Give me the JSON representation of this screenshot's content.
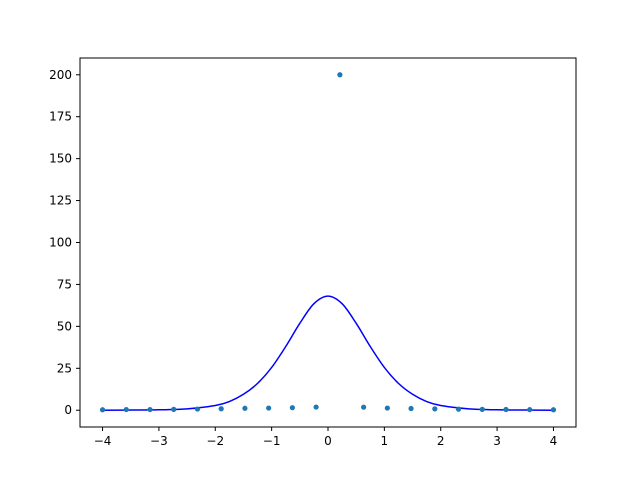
{
  "chart_data": {
    "type": "scatter",
    "title": "",
    "xlabel": "",
    "ylabel": "",
    "xlim": [
      -4.4,
      4.4
    ],
    "ylim": [
      -10,
      210
    ],
    "x_ticks": [
      -4,
      -3,
      -2,
      -1,
      0,
      1,
      2,
      3,
      4
    ],
    "x_tick_labels": [
      "−4",
      "−3",
      "−2",
      "−1",
      "0",
      "1",
      "2",
      "3",
      "4"
    ],
    "y_ticks": [
      0,
      25,
      50,
      75,
      100,
      125,
      150,
      175,
      200
    ],
    "y_tick_labels": [
      "0",
      "25",
      "50",
      "75",
      "100",
      "125",
      "150",
      "175",
      "200"
    ],
    "grid": false,
    "legend": false,
    "series": [
      {
        "kind": "scatter",
        "color": "#1f77b4",
        "x": [
          -4.0,
          -3.579,
          -3.158,
          -2.737,
          -2.316,
          -1.895,
          -1.474,
          -1.053,
          -0.632,
          -0.211,
          0.211,
          0.632,
          1.053,
          1.474,
          1.895,
          2.316,
          2.737,
          3.158,
          3.579,
          4.0
        ],
        "y": [
          0.27,
          0.39,
          0.4,
          0.52,
          0.68,
          0.89,
          1.16,
          1.28,
          1.5,
          1.9,
          200,
          1.8,
          1.28,
          1.02,
          0.82,
          0.65,
          0.51,
          0.42,
          0.34,
          0.28
        ]
      },
      {
        "kind": "line",
        "color": "#0000ff",
        "x": [
          -4.0,
          -3.5,
          -3.0,
          -2.5,
          -2.0,
          -1.75,
          -1.5,
          -1.25,
          -1.0,
          -0.75,
          -0.5,
          -0.25,
          0.0,
          0.25,
          0.5,
          0.75,
          1.0,
          1.25,
          1.5,
          1.75,
          2.0,
          2.5,
          3.0,
          3.5,
          4.0
        ],
        "y": [
          0.0,
          0.1,
          0.25,
          0.8,
          2.8,
          5.2,
          9.5,
          16.0,
          25.5,
          38.0,
          51.8,
          63.5,
          68.0,
          63.5,
          51.8,
          38.0,
          25.5,
          16.0,
          9.5,
          5.2,
          2.8,
          0.8,
          0.25,
          0.1,
          0.0
        ]
      }
    ]
  }
}
